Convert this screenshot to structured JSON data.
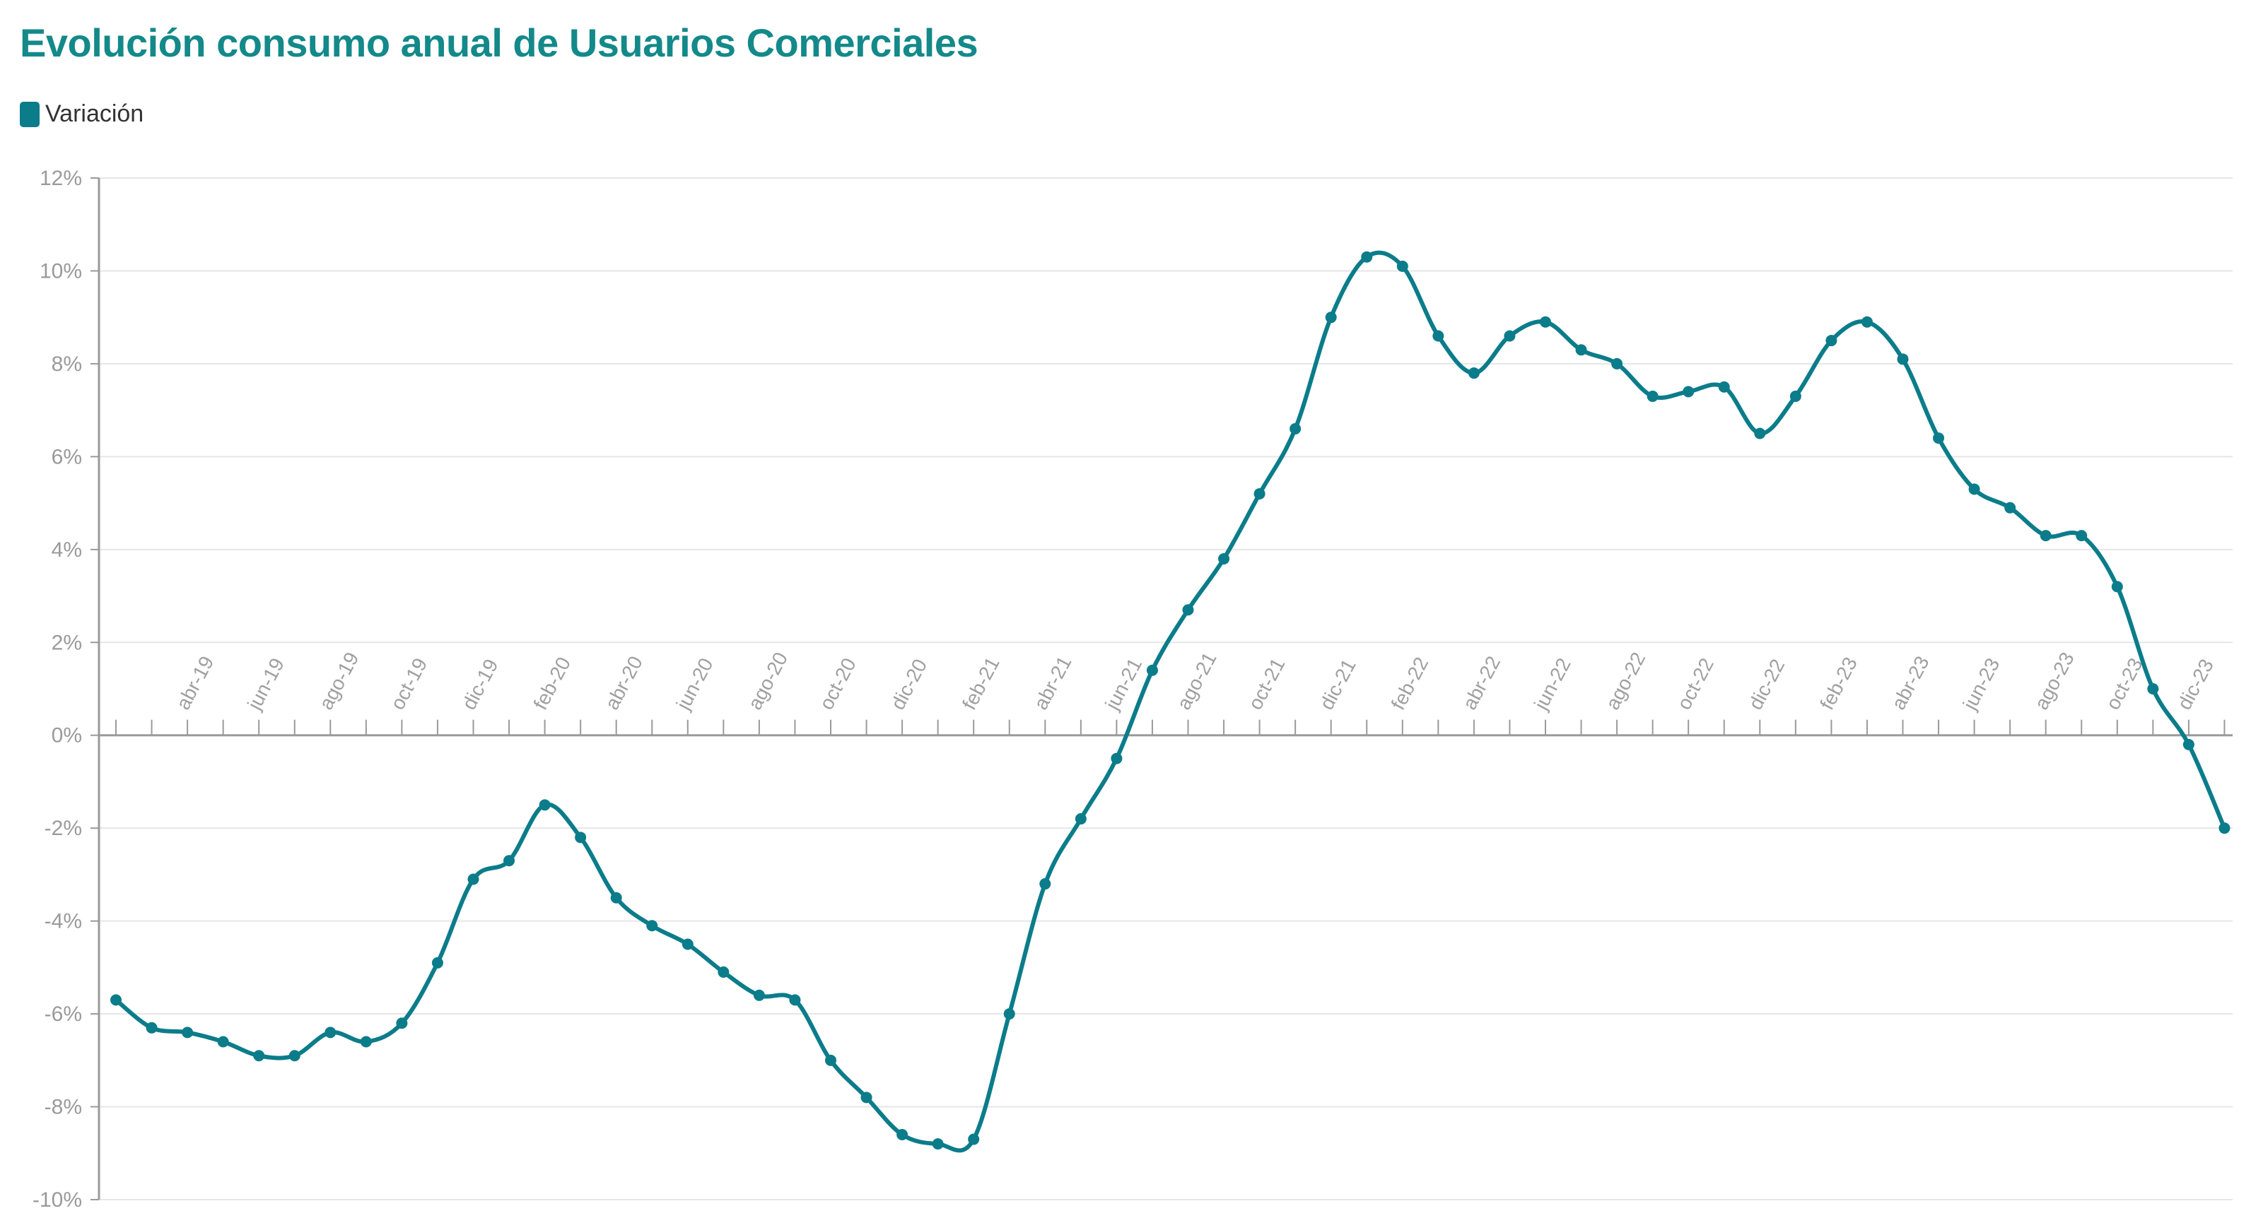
{
  "title": "Evolución consumo anual de Usuarios Comerciales",
  "legend": {
    "label": "Variación",
    "color": "#0b7c8a"
  },
  "colors": {
    "title": "#13898a",
    "series": "#0b7c8a",
    "grid": "#e6e6e6",
    "axis": "#9a9a9a",
    "tick_text": "#a0a0a0"
  },
  "chart_data": {
    "type": "line",
    "title": "Evolución consumo anual de Usuarios Comerciales",
    "xlabel": "",
    "ylabel": "",
    "ylim": [
      -10,
      12
    ],
    "y_ticks": [
      12,
      10,
      8,
      6,
      4,
      2,
      0,
      -2,
      -4,
      -6,
      -8,
      -10
    ],
    "y_tick_labels": [
      "12%",
      "10%",
      "8%",
      "6%",
      "4%",
      "2%",
      "0%",
      "-2%",
      "-4%",
      "-6%",
      "-8%",
      "-10%"
    ],
    "grid": true,
    "legend_position": "top-left",
    "x": [
      "feb-19",
      "mar-19",
      "abr-19",
      "may-19",
      "jun-19",
      "jul-19",
      "ago-19",
      "sep-19",
      "oct-19",
      "nov-19",
      "dic-19",
      "ene-20",
      "feb-20",
      "mar-20",
      "abr-20",
      "may-20",
      "jun-20",
      "jul-20",
      "ago-20",
      "sep-20",
      "oct-20",
      "nov-20",
      "dic-20",
      "ene-21",
      "feb-21",
      "mar-21",
      "abr-21",
      "may-21",
      "jun-21",
      "jul-21",
      "ago-21",
      "sep-21",
      "oct-21",
      "nov-21",
      "dic-21",
      "ene-22",
      "feb-22",
      "mar-22",
      "abr-22",
      "may-22",
      "jun-22",
      "jul-22",
      "ago-22",
      "sep-22",
      "oct-22",
      "nov-22",
      "dic-22",
      "ene-23",
      "feb-23",
      "mar-23",
      "abr-23",
      "may-23",
      "jun-23",
      "jul-23",
      "ago-23",
      "sep-23",
      "oct-23",
      "nov-23",
      "dic-23",
      "ene-24"
    ],
    "x_tick_labels": [
      "abr-19",
      "jun-19",
      "ago-19",
      "oct-19",
      "dic-19",
      "feb-20",
      "abr-20",
      "jun-20",
      "ago-20",
      "oct-20",
      "dic-20",
      "feb-21",
      "abr-21",
      "jun-21",
      "ago-21",
      "oct-21",
      "dic-21",
      "feb-22",
      "abr-22",
      "jun-22",
      "ago-22",
      "oct-22",
      "dic-22",
      "feb-23",
      "abr-23",
      "jun-23",
      "ago-23",
      "oct-23",
      "dic-23"
    ],
    "series": [
      {
        "name": "Variación",
        "values": [
          -5.7,
          -6.3,
          -6.4,
          -6.6,
          -6.9,
          -6.9,
          -6.4,
          -6.6,
          -6.2,
          -4.9,
          -3.1,
          -2.7,
          -1.5,
          -2.2,
          -3.5,
          -4.1,
          -4.5,
          -5.1,
          -5.6,
          -5.7,
          -7.0,
          -7.8,
          -8.6,
          -8.8,
          -8.7,
          -6.0,
          -3.2,
          -1.8,
          -0.5,
          1.4,
          2.7,
          3.8,
          5.2,
          6.6,
          9.0,
          10.3,
          10.1,
          8.6,
          7.8,
          8.6,
          8.9,
          8.3,
          8.0,
          7.3,
          7.4,
          7.5,
          6.5,
          7.3,
          8.5,
          8.9,
          8.1,
          6.4,
          5.3,
          4.9,
          4.3,
          4.3,
          3.2,
          1.0,
          -0.2,
          -2.0
        ]
      }
    ]
  }
}
